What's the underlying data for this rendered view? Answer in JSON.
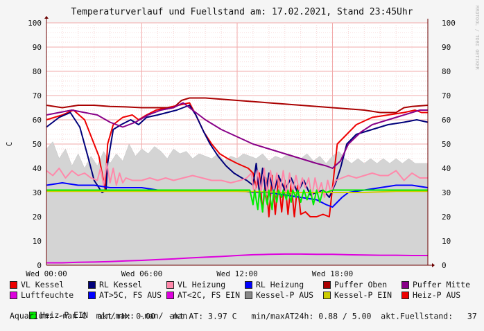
{
  "chart_data": {
    "type": "line",
    "title": "Temperaturverlauf und Fuellstand am: 17.02.2021, Stand 23:45Uhr",
    "ylabel": "C",
    "watermark": "RRDTOOL / TOBI OETIKER",
    "ylim": [
      0,
      100
    ],
    "y_ticks": [
      "0",
      "10",
      "20",
      "30",
      "40",
      "50",
      "60",
      "70",
      "80",
      "90",
      "100"
    ],
    "x_ticks": [
      "Wed 00:00",
      "Wed 06:00",
      "Wed 12:00",
      "Wed 18:00"
    ],
    "x_hours_range": [
      0,
      24
    ],
    "area": {
      "name": "Luftfeuchte",
      "color": "#d4d4d4",
      "x": [
        0,
        0.4,
        0.8,
        1.2,
        1.6,
        2.0,
        2.4,
        2.8,
        3.2,
        3.6,
        4.0,
        4.4,
        4.8,
        5.2,
        5.6,
        6.0,
        6.4,
        6.8,
        7.2,
        7.6,
        8.0,
        8.4,
        8.8,
        9.2,
        9.6,
        10.0,
        10.4,
        10.8,
        11.2,
        11.6,
        12.0,
        12.4,
        12.8,
        13.2,
        13.6,
        14.0,
        14.4,
        14.8,
        15.2,
        15.6,
        16.0,
        16.4,
        16.8,
        17.2,
        17.6,
        18.0,
        18.4,
        18.8,
        19.2,
        19.6,
        20.0,
        20.4,
        20.8,
        21.2,
        21.6,
        22.0,
        22.4,
        22.8,
        23.2,
        23.6,
        24.0
      ],
      "y": [
        48,
        51,
        44,
        48,
        41,
        46,
        40,
        45,
        41,
        47,
        42,
        46,
        43,
        50,
        45,
        48,
        46,
        49,
        47,
        44,
        48,
        46,
        47,
        44,
        46,
        45,
        44,
        46,
        43,
        45,
        44,
        46,
        45,
        44,
        46,
        43,
        45,
        44,
        46,
        45,
        44,
        46,
        43,
        45,
        42,
        45,
        47,
        44,
        42,
        44,
        42,
        44,
        42,
        44,
        42,
        44,
        42,
        44,
        42,
        42,
        42
      ]
    },
    "series": [
      {
        "name": "VL Kessel",
        "color": "#ee0000",
        "x": [
          0,
          1,
          1.7,
          2.4,
          3.3,
          3.7,
          3.85,
          4.2,
          4.8,
          5.4,
          5.8,
          6.3,
          6.9,
          7.6,
          8.3,
          9.0,
          9.4,
          9.9,
          10.4,
          10.9,
          11.4,
          12.0,
          12.7,
          13.0,
          13.2,
          13.4,
          13.6,
          13.8,
          14.0,
          14.2,
          14.4,
          14.6,
          14.8,
          15.0,
          15.2,
          15.4,
          15.6,
          15.8,
          16.0,
          16.3,
          16.6,
          17.0,
          17.4,
          17.8,
          18.3,
          18.9,
          19.5,
          20.5,
          21.5,
          22.5,
          23.2,
          23.6,
          24.0
        ],
        "y": [
          60,
          62,
          64,
          60,
          45,
          31,
          50,
          58,
          61,
          62,
          60,
          62,
          64,
          65,
          66,
          67,
          62,
          55,
          50,
          46,
          44,
          42,
          40,
          38,
          32,
          38,
          22,
          36,
          20,
          37,
          21,
          36,
          22,
          35,
          21,
          34,
          20,
          33,
          21,
          22,
          20,
          20,
          21,
          20,
          50,
          54,
          58,
          61,
          62,
          63,
          64,
          63,
          63
        ]
      },
      {
        "name": "RL Kessel",
        "color": "#00007a",
        "x": [
          0,
          0.8,
          1.5,
          2.1,
          2.6,
          3.0,
          3.5,
          3.75,
          3.85,
          4.2,
          4.7,
          5.3,
          5.8,
          6.3,
          7.0,
          7.6,
          8.2,
          9.0,
          9.4,
          9.9,
          10.3,
          10.8,
          11.3,
          11.8,
          12.3,
          12.6,
          13.0,
          13.2,
          13.4,
          13.6,
          13.8,
          14.0,
          14.3,
          14.6,
          15.0,
          15.4,
          15.8,
          16.2,
          16.6,
          17.0,
          17.4,
          17.8,
          18.2,
          18.5,
          18.9,
          19.5,
          20.5,
          21.5,
          22.5,
          23.3,
          24.0
        ],
        "y": [
          57,
          61,
          63,
          57,
          45,
          35,
          30,
          31,
          42,
          56,
          58,
          60,
          58,
          61,
          62,
          63,
          64,
          66,
          62,
          55,
          50,
          45,
          41,
          38,
          36,
          35,
          33,
          42,
          30,
          40,
          30,
          38,
          30,
          37,
          31,
          36,
          30,
          35,
          29,
          30,
          31,
          28,
          34,
          40,
          50,
          54,
          56,
          58,
          59,
          60,
          59
        ]
      },
      {
        "name": "VL Heizung",
        "color": "#ff88aa",
        "x": [
          0,
          0.4,
          0.8,
          1.2,
          1.6,
          2.0,
          2.4,
          2.8,
          3.2,
          3.4,
          3.6,
          3.8,
          4.0,
          4.2,
          4.4,
          4.6,
          4.8,
          5.0,
          5.4,
          6.0,
          6.5,
          7.0,
          7.5,
          8.0,
          8.6,
          9.2,
          9.8,
          10.4,
          11.0,
          11.6,
          12.2,
          12.6,
          12.9,
          13.1,
          13.3,
          13.5,
          13.7,
          13.9,
          14.1,
          14.3,
          14.5,
          14.7,
          14.9,
          15.1,
          15.3,
          15.5,
          15.7,
          15.9,
          16.1,
          16.3,
          16.5,
          16.7,
          16.9,
          17.1,
          17.3,
          17.5,
          17.7,
          17.9,
          18.2,
          18.6,
          19.0,
          19.5,
          20.0,
          20.5,
          21.0,
          21.5,
          22.0,
          22.5,
          23.0,
          23.5,
          24.0
        ],
        "y": [
          39,
          37,
          40,
          36,
          39,
          37,
          38,
          36,
          35,
          40,
          33,
          42,
          34,
          40,
          33,
          38,
          34,
          36,
          35,
          35,
          36,
          35,
          36,
          35,
          36,
          37,
          36,
          35,
          35,
          34,
          35,
          36,
          38,
          28,
          39,
          30,
          40,
          29,
          39,
          31,
          38,
          30,
          39,
          29,
          38,
          30,
          37,
          31,
          36,
          32,
          36,
          28,
          36,
          30,
          34,
          28,
          35,
          30,
          35,
          36,
          37,
          36,
          37,
          38,
          37,
          37,
          39,
          35,
          38,
          36,
          36
        ]
      },
      {
        "name": "RL Heizung",
        "color": "#0000ff",
        "x": [
          0,
          1,
          2,
          3,
          4,
          5,
          6,
          7,
          8,
          9,
          10,
          11,
          12,
          13,
          14,
          15,
          16,
          17,
          17.6,
          18.0,
          18.6,
          19,
          20,
          21,
          22,
          23,
          24
        ],
        "y": [
          33,
          34,
          33,
          33,
          32,
          32,
          32,
          31,
          31,
          31,
          31,
          31,
          31,
          30,
          30,
          29,
          28,
          27,
          25,
          24,
          28,
          30,
          31,
          32,
          33,
          33,
          32
        ]
      },
      {
        "name": "Puffer Oben",
        "color": "#aa0000",
        "x": [
          0,
          1,
          2,
          3,
          4,
          5,
          6,
          7,
          8,
          8.5,
          9,
          10,
          12,
          14,
          16,
          18,
          20,
          21,
          22,
          22.5,
          23,
          24
        ],
        "y": [
          66,
          65,
          66,
          66,
          65.5,
          65.3,
          65,
          65,
          65,
          68,
          69,
          69,
          68,
          67,
          66,
          65,
          64,
          63,
          63,
          65,
          65.5,
          66
        ]
      },
      {
        "name": "Puffer Mitte",
        "color": "#880088",
        "x": [
          0,
          0.8,
          1.6,
          2.4,
          3.2,
          4.0,
          4.8,
          5.6,
          6.4,
          7.2,
          8.0,
          8.6,
          9.2,
          10.0,
          11.0,
          12.0,
          13.0,
          14.0,
          15.0,
          16.0,
          17.0,
          17.6,
          18.0,
          18.5,
          19.0,
          19.8,
          20.5,
          21.5,
          22.5,
          23.0,
          23.5,
          24.0
        ],
        "y": [
          62,
          63,
          64,
          63,
          62,
          59,
          57,
          59,
          62,
          64,
          65,
          67,
          64,
          60,
          56,
          53,
          50,
          48,
          46,
          44,
          42,
          41,
          40,
          43,
          50,
          55,
          58,
          60,
          62,
          63,
          64,
          64
        ]
      },
      {
        "name": "Luftfeuchte",
        "color": "#dd00dd",
        "x": [
          0,
          1,
          2,
          3,
          4,
          5,
          6,
          7,
          8,
          9,
          10,
          11,
          12,
          13,
          14,
          15,
          16,
          17,
          18,
          19,
          20,
          21,
          22,
          23,
          24
        ],
        "y": [
          1,
          1,
          1.2,
          1.3,
          1.5,
          1.8,
          2,
          2.3,
          2.6,
          3,
          3.3,
          3.6,
          4,
          4.3,
          4.5,
          4.6,
          4.6,
          4.5,
          4.5,
          4.3,
          4.2,
          4.1,
          4.1,
          4.0,
          4.0
        ]
      },
      {
        "name": "Kessel-P EIN",
        "color": "#cccc00",
        "x": [
          0,
          3,
          6,
          9,
          12,
          15,
          18,
          20,
          22,
          24
        ],
        "y": [
          30.5,
          30.5,
          30.5,
          30.5,
          30.5,
          30,
          30,
          30,
          30.5,
          30.5
        ]
      },
      {
        "name": "Heiz-P EIN",
        "color": "#00ee00",
        "x": [
          0,
          4,
          8,
          12,
          12.8,
          13.0,
          13.1,
          13.3,
          13.4,
          13.6,
          13.7,
          13.9,
          14.0,
          14.2,
          14.3,
          14.5,
          14.6,
          14.8,
          14.9,
          15.1,
          15.2,
          15.4,
          15.5,
          15.7,
          15.8,
          16.0,
          16.2,
          16.4,
          16.6,
          16.8,
          17.0,
          17.2,
          17.4,
          17.6,
          18,
          20,
          24
        ],
        "y": [
          31,
          31,
          31,
          31,
          31,
          25,
          31,
          23,
          31,
          22,
          31,
          25,
          31,
          23,
          31,
          26,
          31,
          28,
          31,
          27,
          31,
          26,
          31,
          28,
          31,
          26,
          31,
          27,
          31,
          25,
          31,
          26,
          31,
          30,
          31,
          31,
          31
        ]
      }
    ]
  },
  "legend": {
    "row1": [
      {
        "label": "VL Kessel",
        "color": "#ee0000"
      },
      {
        "label": "RL Kessel",
        "color": "#00007a"
      },
      {
        "label": "VL Heizung",
        "color": "#ff88aa"
      },
      {
        "label": "RL Heizung",
        "color": "#0000ff"
      },
      {
        "label": "Puffer Oben",
        "color": "#aa0000"
      },
      {
        "label": "Puffer Mitte",
        "color": "#880088"
      }
    ],
    "row2": [
      {
        "label": "Luftfeuchte",
        "color": "#dd00dd"
      },
      {
        "label": "AT>5C, FS AUS",
        "color": "#0000ff"
      },
      {
        "label": "AT<2C, FS EIN",
        "color": "#dd00dd"
      },
      {
        "label": "Kessel-P AUS",
        "color": "#888888"
      },
      {
        "label": "Kessel-P EIN",
        "color": "#cccc00"
      },
      {
        "label": "Heiz-P AUS",
        "color": "#ee0000"
      }
    ],
    "row3_item": {
      "label": "Heiz-P EIN",
      "color": "#00ee00"
    }
  },
  "info": {
    "line3": "akt.rH: 0.00   akt.AT: 3.97 C   min/maxAT24h: 0.88 / 5.00  akt.Fuellstand:   37",
    "line4": "Aquarium: -nan C  min/max: -nan/ -nan"
  }
}
